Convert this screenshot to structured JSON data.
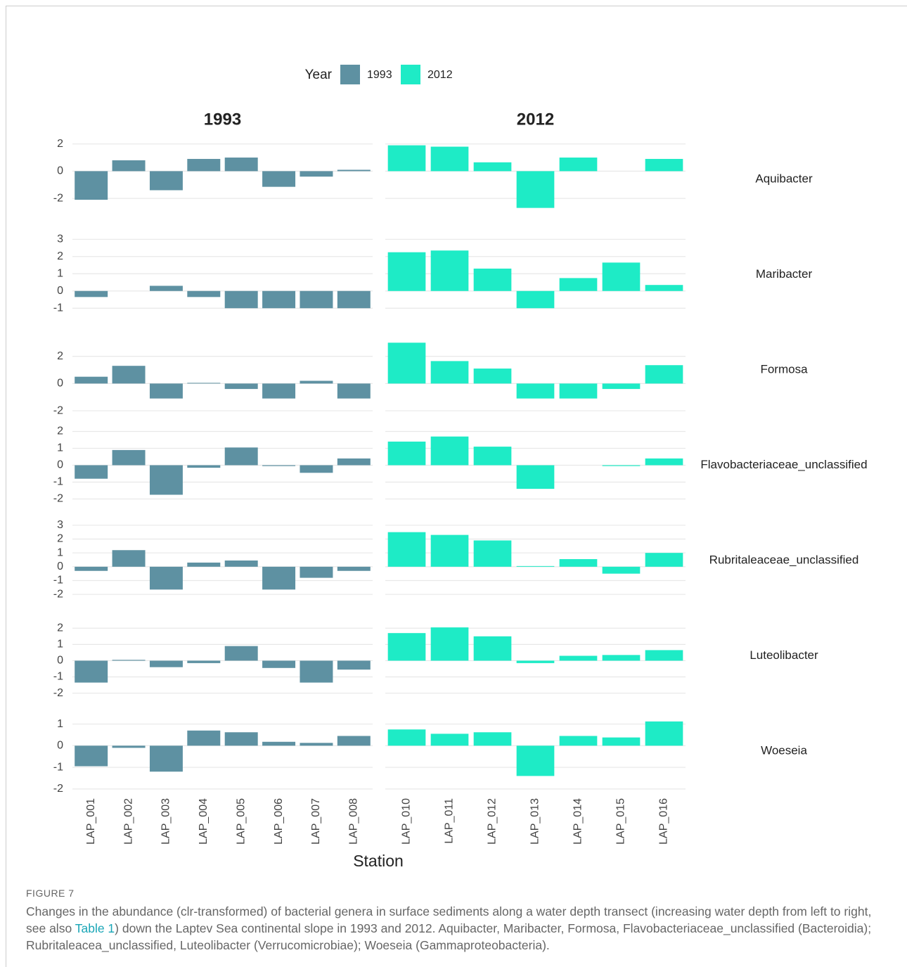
{
  "chart_data": {
    "type": "facet_bar",
    "legend_title": "Year",
    "x_label": "Station",
    "grid": true,
    "series": [
      {
        "name": "1993",
        "color": "#5e91a2",
        "categories": [
          "LAP_001",
          "LAP_002",
          "LAP_003",
          "LAP_004",
          "LAP_005",
          "LAP_006",
          "LAP_007",
          "LAP_008"
        ]
      },
      {
        "name": "2012",
        "color": "#1eebc6",
        "categories": [
          "LAP_010",
          "LAP_011",
          "LAP_012",
          "LAP_013",
          "LAP_014",
          "LAP_015",
          "LAP_016"
        ]
      }
    ],
    "panels": [
      {
        "name": "Aquibacter",
        "ylim": [
          -3.7,
          2.5
        ],
        "yticks": [
          -2,
          0,
          2
        ],
        "values": [
          [
            -2.1,
            0.8,
            -1.4,
            0.9,
            1.0,
            -1.15,
            -0.4,
            0.1
          ],
          [
            1.9,
            1.8,
            0.65,
            -2.7,
            1.0,
            0,
            0.9
          ]
        ]
      },
      {
        "name": "Maribacter",
        "ylim": [
          -1.5,
          3.4
        ],
        "yticks": [
          -1,
          0,
          1,
          2,
          3
        ],
        "values": [
          [
            -0.35,
            0,
            0.3,
            -0.35,
            -1.0,
            -1.0,
            -1.0,
            -1.0
          ],
          [
            2.25,
            2.35,
            1.3,
            -1.0,
            0.75,
            1.65,
            0.35
          ]
        ]
      },
      {
        "name": "Formosa",
        "ylim": [
          -2.1,
          4.1
        ],
        "yticks": [
          -2,
          0,
          2
        ],
        "values": [
          [
            0.5,
            1.3,
            -1.1,
            0.05,
            -0.4,
            -1.1,
            0.2,
            -1.1
          ],
          [
            3.0,
            1.65,
            1.1,
            -1.1,
            -1.1,
            -0.4,
            1.35
          ]
        ]
      },
      {
        "name": "Flavobacteriaceae_unclassified",
        "ylim": [
          -2.5,
          2.5
        ],
        "yticks": [
          -2,
          -1,
          0,
          1,
          2
        ],
        "values": [
          [
            -0.8,
            0.9,
            -1.75,
            -0.15,
            1.05,
            -0.05,
            -0.45,
            0.4
          ],
          [
            1.4,
            1.7,
            1.1,
            -1.4,
            0,
            -0.05,
            0.4
          ]
        ]
      },
      {
        "name": "Rubritaleaceae_unclassified",
        "ylim": [
          -2.6,
          3.5
        ],
        "yticks": [
          -2,
          -1,
          0,
          1,
          2,
          3
        ],
        "values": [
          [
            -0.3,
            1.2,
            -1.65,
            0.3,
            0.45,
            -1.65,
            -0.8,
            -0.3
          ],
          [
            2.5,
            2.3,
            1.9,
            0.05,
            0.55,
            -0.5,
            1.0
          ]
        ]
      },
      {
        "name": "Luteolibacter",
        "ylim": [
          -2.3,
          2.9
        ],
        "yticks": [
          -2,
          -1,
          0,
          1,
          2
        ],
        "values": [
          [
            -1.35,
            0.05,
            -0.4,
            -0.15,
            0.9,
            -0.45,
            -1.35,
            -0.55
          ],
          [
            1.7,
            2.05,
            1.5,
            -0.15,
            0.3,
            0.35,
            0.65
          ]
        ]
      },
      {
        "name": "Woeseia",
        "ylim": [
          -2.2,
          1.7
        ],
        "yticks": [
          -2,
          -1,
          0,
          1
        ],
        "values": [
          [
            -0.95,
            -0.1,
            -1.2,
            0.7,
            0.62,
            0.18,
            0.13,
            0.45
          ],
          [
            0.75,
            0.55,
            0.62,
            -1.4,
            0.45,
            0.38,
            1.12
          ]
        ]
      }
    ]
  },
  "caption": {
    "label": "FIGURE 7",
    "text_before": "Changes in the abundance (clr-transformed) of bacterial genera in surface sediments along a water depth transect (increasing water depth from left to right, see also ",
    "link": "Table 1",
    "text_after": ") down the Laptev Sea continental slope in 1993 and 2012. Aquibacter, Maribacter, Formosa, Flavobacteriaceae_unclassified (Bacteroidia); Rubritaleacea_unclassified, Luteolibacter (Verrucomicrobiae); Woeseia (Gammaproteobacteria)."
  }
}
